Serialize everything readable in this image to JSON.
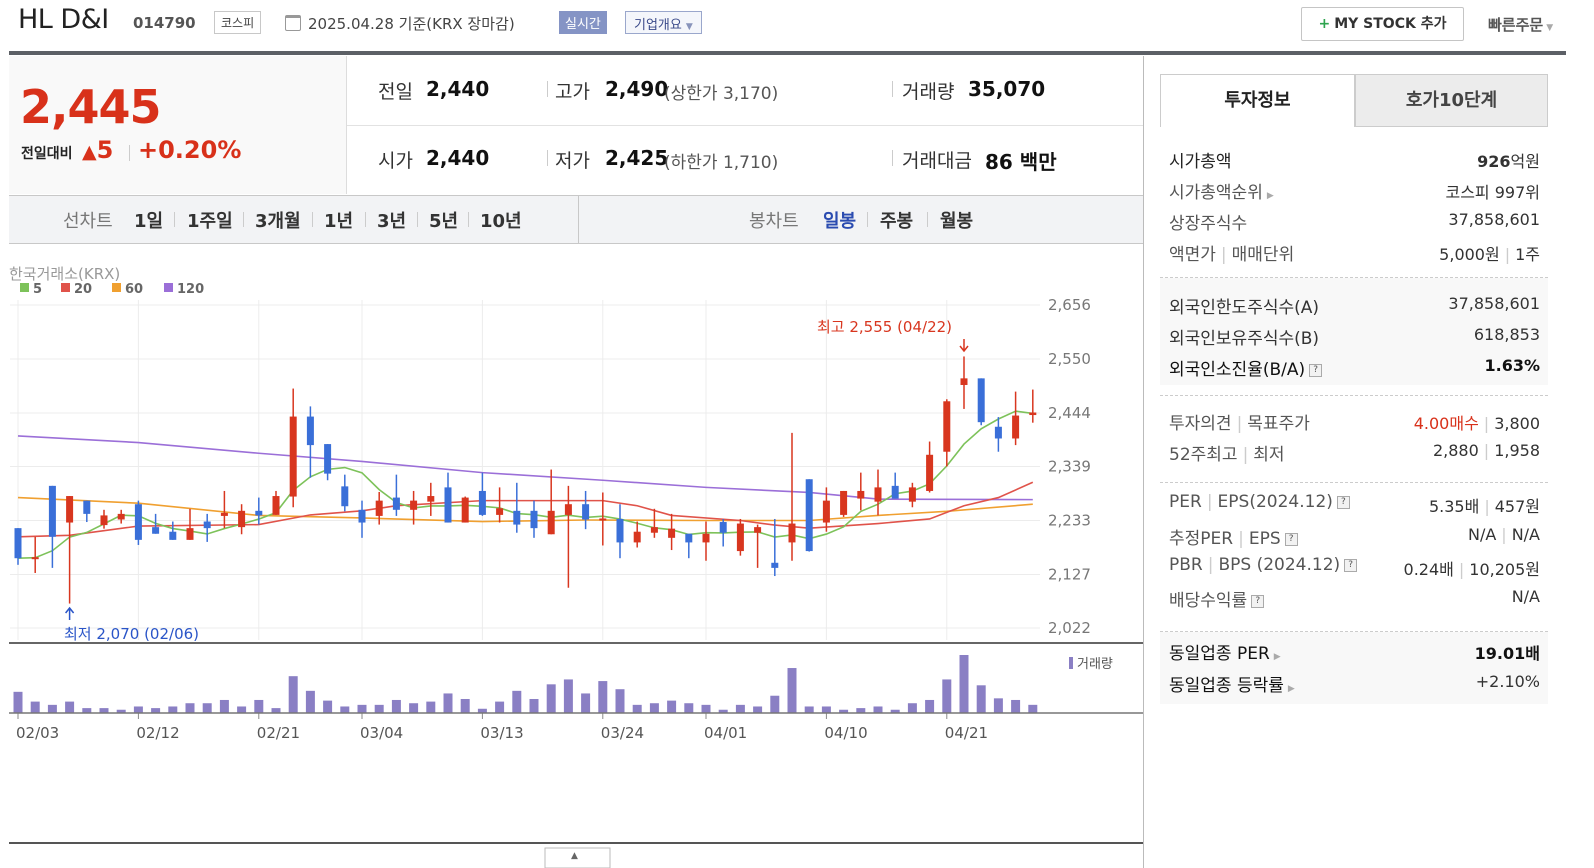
{
  "header": {
    "title": "HL D&I",
    "code": "014790",
    "market_badge": "코스피",
    "date": "2025.04.28",
    "date_suffix": " 기준(KRX 장마감)",
    "realtime_label": "실시간",
    "company_overview_label": "기업개요",
    "mystock_label": "MY STOCK 추가",
    "quick_order_label": "빠른주문"
  },
  "quote": {
    "price": "2,445",
    "change_label": "전일대비",
    "change": "5",
    "change_pct": "+0.20%",
    "prev_close_label": "전일",
    "prev_close": "2,440",
    "open_label": "시가",
    "open": "2,440",
    "high_label": "고가",
    "high": "2,490",
    "upper_limit": "(상한가 3,170)",
    "low_label": "저가",
    "low": "2,425",
    "lower_limit": "(하한가 1,710)",
    "volume_label": "거래량",
    "volume": "35,070",
    "value_label": "거래대금",
    "value": "86 백만"
  },
  "chart_tabs": {
    "line_label": "선차트",
    "line_periods": [
      "1일",
      "1주일",
      "3개월",
      "1년",
      "3년",
      "5년",
      "10년"
    ],
    "candle_label": "봉차트",
    "candle_periods": [
      "일봉",
      "주봉",
      "월봉"
    ],
    "active_candle": "일봉"
  },
  "colors": {
    "up": "#d8361f",
    "down": "#3a6fd8",
    "ma5": "#7dc25a",
    "ma20": "#e0534a",
    "ma60": "#f0a030",
    "ma120": "#9b6fd8",
    "volume": "#8a7fc4"
  },
  "chart_data": {
    "type": "candlestick",
    "source_label": "한국거래소(KRX)",
    "legend": [
      "5",
      "20",
      "60",
      "120"
    ],
    "ylim": [
      2022,
      2656
    ],
    "y_ticks": [
      2022,
      2127,
      2233,
      2339,
      2444,
      2550,
      2656
    ],
    "y_tick_labels": [
      "2,022",
      "2,127",
      "2,233",
      "2,339",
      "2,444",
      "2,550",
      "2,656"
    ],
    "x_ticks": [
      {
        "index": 0,
        "label": "02/03"
      },
      {
        "index": 7,
        "label": "02/12"
      },
      {
        "index": 14,
        "label": "02/21"
      },
      {
        "index": 20,
        "label": "03/04"
      },
      {
        "index": 27,
        "label": "03/13"
      },
      {
        "index": 34,
        "label": "03/24"
      },
      {
        "index": 40,
        "label": "04/01"
      },
      {
        "index": 47,
        "label": "04/10"
      },
      {
        "index": 54,
        "label": "04/21"
      }
    ],
    "ohlc_fields": [
      "open",
      "high",
      "low",
      "close"
    ],
    "candles": [
      [
        2218,
        2218,
        2146,
        2159
      ],
      [
        2160,
        2201,
        2130,
        2161
      ],
      [
        2301,
        2301,
        2140,
        2201
      ],
      [
        2229,
        2281,
        2070,
        2281
      ],
      [
        2272,
        2272,
        2230,
        2246
      ],
      [
        2224,
        2254,
        2217,
        2243
      ],
      [
        2235,
        2254,
        2227,
        2246
      ],
      [
        2265,
        2272,
        2185,
        2195
      ],
      [
        2220,
        2246,
        2207,
        2207
      ],
      [
        2211,
        2231,
        2195,
        2195
      ],
      [
        2195,
        2256,
        2195,
        2218
      ],
      [
        2231,
        2246,
        2191,
        2218
      ],
      [
        2242,
        2291,
        2218,
        2248
      ],
      [
        2220,
        2265,
        2206,
        2252
      ],
      [
        2252,
        2278,
        2225,
        2243
      ],
      [
        2244,
        2291,
        2244,
        2281
      ],
      [
        2280,
        2492,
        2259,
        2437
      ],
      [
        2437,
        2457,
        2317,
        2381
      ],
      [
        2383,
        2383,
        2312,
        2325
      ],
      [
        2300,
        2323,
        2251,
        2261
      ],
      [
        2254,
        2272,
        2199,
        2229
      ],
      [
        2242,
        2289,
        2225,
        2272
      ],
      [
        2278,
        2323,
        2242,
        2254
      ],
      [
        2254,
        2291,
        2225,
        2272
      ],
      [
        2270,
        2307,
        2242,
        2281
      ],
      [
        2298,
        2327,
        2229,
        2229
      ],
      [
        2229,
        2280,
        2229,
        2278
      ],
      [
        2291,
        2327,
        2242,
        2244
      ],
      [
        2244,
        2298,
        2229,
        2257
      ],
      [
        2252,
        2307,
        2209,
        2225
      ],
      [
        2252,
        2272,
        2199,
        2218
      ],
      [
        2206,
        2333,
        2206,
        2252
      ],
      [
        2244,
        2301,
        2101,
        2265
      ],
      [
        2265,
        2291,
        2216,
        2235
      ],
      [
        2236,
        2288,
        2184,
        2237
      ],
      [
        2236,
        2265,
        2159,
        2190
      ],
      [
        2190,
        2231,
        2180,
        2211
      ],
      [
        2209,
        2256,
        2199,
        2220
      ],
      [
        2199,
        2246,
        2175,
        2217
      ],
      [
        2207,
        2207,
        2159,
        2190
      ],
      [
        2190,
        2231,
        2154,
        2207
      ],
      [
        2230,
        2236,
        2182,
        2209
      ],
      [
        2173,
        2236,
        2164,
        2227
      ],
      [
        2209,
        2225,
        2140,
        2220
      ],
      [
        2150,
        2236,
        2124,
        2140
      ],
      [
        2190,
        2405,
        2154,
        2227
      ],
      [
        2314,
        2314,
        2172,
        2173
      ],
      [
        2229,
        2298,
        2211,
        2272
      ],
      [
        2244,
        2291,
        2240,
        2291
      ],
      [
        2276,
        2327,
        2253,
        2291
      ],
      [
        2270,
        2333,
        2243,
        2298
      ],
      [
        2301,
        2327,
        2276,
        2276
      ],
      [
        2270,
        2307,
        2259,
        2298
      ],
      [
        2291,
        2388,
        2288,
        2362
      ],
      [
        2368,
        2471,
        2339,
        2467
      ],
      [
        2499,
        2555,
        2452,
        2512
      ],
      [
        2512,
        2512,
        2420,
        2426
      ],
      [
        2417,
        2436,
        2368,
        2394
      ],
      [
        2394,
        2486,
        2381,
        2439
      ],
      [
        2440,
        2490,
        2425,
        2445
      ]
    ],
    "ma_lines": [
      {
        "period": 20,
        "points": [
          [
            0,
            2201
          ],
          [
            3,
            2204
          ],
          [
            7,
            2222
          ],
          [
            14,
            2225
          ],
          [
            17,
            2244
          ],
          [
            20,
            2252
          ],
          [
            22,
            2262
          ],
          [
            27,
            2272
          ],
          [
            34,
            2272
          ],
          [
            36,
            2262
          ],
          [
            38,
            2243
          ],
          [
            42,
            2233
          ],
          [
            44,
            2224
          ],
          [
            46,
            2218
          ],
          [
            50,
            2227
          ],
          [
            53,
            2236
          ],
          [
            55,
            2262
          ],
          [
            57,
            2278
          ],
          [
            59,
            2308
          ]
        ]
      },
      {
        "period": 60,
        "points": [
          [
            0,
            2278
          ],
          [
            7,
            2267
          ],
          [
            14,
            2243
          ],
          [
            20,
            2238
          ],
          [
            27,
            2231
          ],
          [
            33,
            2234
          ],
          [
            40,
            2233
          ],
          [
            46,
            2233
          ],
          [
            50,
            2243
          ],
          [
            54,
            2251
          ],
          [
            59,
            2265
          ]
        ]
      },
      {
        "period": 120,
        "points": [
          [
            0,
            2399
          ],
          [
            7,
            2386
          ],
          [
            14,
            2365
          ],
          [
            20,
            2349
          ],
          [
            27,
            2327
          ],
          [
            34,
            2312
          ],
          [
            40,
            2298
          ],
          [
            46,
            2288
          ],
          [
            50,
            2275
          ],
          [
            59,
            2274
          ]
        ]
      }
    ],
    "volume_label": "거래량",
    "volumes": [
      91000,
      49000,
      35000,
      49000,
      21000,
      21000,
      14000,
      28000,
      21000,
      28000,
      42000,
      42000,
      56000,
      28000,
      56000,
      21000,
      158200,
      95200,
      53200,
      28000,
      35000,
      35000,
      56000,
      42000,
      49000,
      84000,
      60200,
      18200,
      49000,
      95200,
      60200,
      123200,
      144200,
      84000,
      137200,
      102200,
      35000,
      42000,
      53200,
      42000,
      35000,
      14000,
      35000,
      28000,
      74200,
      193200,
      28000,
      28000,
      14000,
      21000,
      28000,
      14000,
      42000,
      56000,
      144200,
      249200,
      119000,
      63000,
      56000,
      35070
    ],
    "annotations": {
      "high": {
        "text": "최고 2,555 (04/22)",
        "index": 55,
        "value": 2555
      },
      "low": {
        "text": "최저 2,070 (02/06)",
        "index": 3,
        "value": 2070
      }
    }
  },
  "side": {
    "tabs": [
      "투자정보",
      "호가10단계"
    ],
    "market_cap_label": "시가총액",
    "market_cap_num": "926",
    "market_cap_unit": "억원",
    "rank_label": "시가총액순위",
    "rank": "코스피 997위",
    "listed_label": "상장주식수",
    "listed": "37,858,601",
    "par_label": "액면가",
    "unit_label": "매매단위",
    "par": "5,000원",
    "unit": "1주",
    "foreign_limit_label": "외국인한도주식수(A)",
    "foreign_limit": "37,858,601",
    "foreign_hold_label": "외국인보유주식수(B)",
    "foreign_hold": "618,853",
    "foreign_ratio_label": "외국인소진율(B/A)",
    "foreign_ratio": "1.63%",
    "opinion_label": "투자의견",
    "target_label": "목표주가",
    "opinion": "4.00매수",
    "target": "3,800",
    "w52_label": "52주최고",
    "w52_low_label": "최저",
    "w52_high": "2,880",
    "w52_low": "1,958",
    "per_label": "PER",
    "eps_label": "EPS(2024.12)",
    "per": "5.35배",
    "eps": "457원",
    "est_per_label": "추정PER",
    "est_eps_label": "EPS",
    "est_per": "N/A",
    "est_eps": "N/A",
    "pbr_label": "PBR",
    "bps_label": "BPS (2024.12)",
    "pbr": "0.24배",
    "bps": "10,205원",
    "div_label": "배당수익률",
    "div": "N/A",
    "ind_per_label": "동일업종 PER",
    "ind_per": "19.01배",
    "ind_chg_label": "동일업종 등락률",
    "ind_chg": "+2.10%"
  }
}
